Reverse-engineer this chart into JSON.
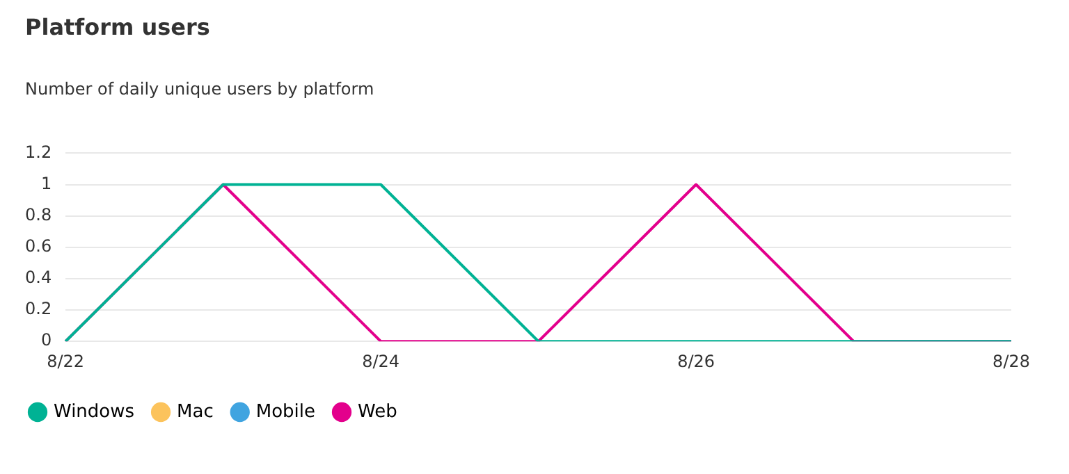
{
  "chart_data": {
    "type": "line",
    "title": "Platform users",
    "subtitle": "Number of daily unique users by platform",
    "categories": [
      "8/22",
      null,
      "8/24",
      null,
      "8/26",
      null,
      "8/28"
    ],
    "series": [
      {
        "name": "Windows",
        "color": "#00b294",
        "values": [
          0,
          1,
          1,
          0,
          0,
          0,
          0
        ]
      },
      {
        "name": "Mac",
        "color": "#fcc35c",
        "values": [
          null,
          null,
          null,
          null,
          null,
          null,
          null
        ]
      },
      {
        "name": "Mobile",
        "color": "#40a4e0",
        "values": [
          null,
          null,
          null,
          null,
          null,
          null,
          null
        ]
      },
      {
        "name": "Web",
        "color": "#e3008c",
        "values": [
          0,
          1,
          0,
          0,
          1,
          0,
          0
        ]
      }
    ],
    "ylim": [
      0,
      1.2
    ],
    "yticks": [
      0,
      0.2,
      0.4,
      0.6,
      0.8,
      1,
      1.2
    ],
    "grid": "y",
    "legend": "bottom left",
    "marker": "none",
    "line_style": "solid"
  }
}
